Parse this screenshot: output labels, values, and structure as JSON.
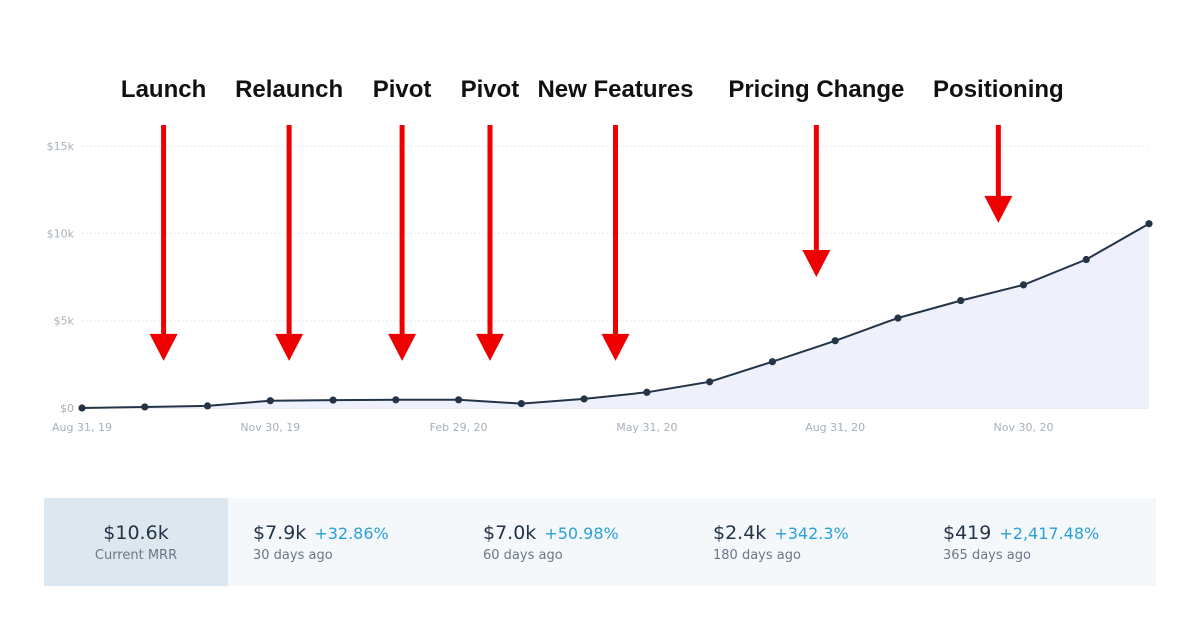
{
  "chart_data": {
    "type": "area",
    "x": [
      "Aug 31, 19",
      "Sep 30, 19",
      "Oct 31, 19",
      "Nov 30, 19",
      "Dec 31, 19",
      "Jan 31, 20",
      "Feb 29, 20",
      "Mar 31, 20",
      "Apr 30, 20",
      "May 31, 20",
      "Jun 30, 20",
      "Jul 31, 20",
      "Aug 31, 20",
      "Sep 30, 20",
      "Oct 31, 20",
      "Nov 30, 20",
      "Dec 31, 20"
    ],
    "x_tick_labels": [
      "Aug 31, 19",
      "Nov 30, 19",
      "Feb 29, 20",
      "May 31, 20",
      "Aug 31, 20",
      "Nov 30, 20"
    ],
    "x_tick_indices": [
      0,
      3,
      6,
      9,
      12,
      15
    ],
    "values": [
      0,
      60,
      120,
      420,
      450,
      470,
      470,
      250,
      520,
      900,
      1500,
      2650,
      3850,
      5150,
      6150,
      7050,
      8500
    ],
    "last_point": 10550,
    "y_tick_labels": [
      "$0",
      "$5k",
      "$10k",
      "$15k"
    ],
    "y_tick_values": [
      0,
      5000,
      10000,
      15000
    ],
    "ylim": [
      0,
      15000
    ],
    "grid": true,
    "line_color": "#243447",
    "fill_color": "#eef0fb",
    "annotations": [
      {
        "label": "Launch",
        "at_index": 1.3
      },
      {
        "label": "Relaunch",
        "at_index": 3.3
      },
      {
        "label": "Pivot",
        "at_index": 5.1
      },
      {
        "label": "Pivot",
        "at_index": 6.5
      },
      {
        "label": "New Features",
        "at_index": 8.5
      },
      {
        "label": "Pricing Change",
        "at_index": 11.7
      },
      {
        "label": "Positioning",
        "at_index": 14.6
      }
    ],
    "annotation_arrow_tip_values": [
      2700,
      2700,
      2700,
      2700,
      2700,
      7500,
      10600
    ],
    "arrow_color": "#ee0000"
  },
  "stats": {
    "current": {
      "value": "$10.6k",
      "caption": "Current MRR"
    },
    "items": [
      {
        "value": "$7.9k",
        "change": "+32.86%",
        "caption": "30 days ago"
      },
      {
        "value": "$7.0k",
        "change": "+50.98%",
        "caption": "60 days ago"
      },
      {
        "value": "$2.4k",
        "change": "+342.3%",
        "caption": "180 days ago"
      },
      {
        "value": "$419",
        "change": "+2,417.48%",
        "caption": "365 days ago"
      }
    ]
  }
}
